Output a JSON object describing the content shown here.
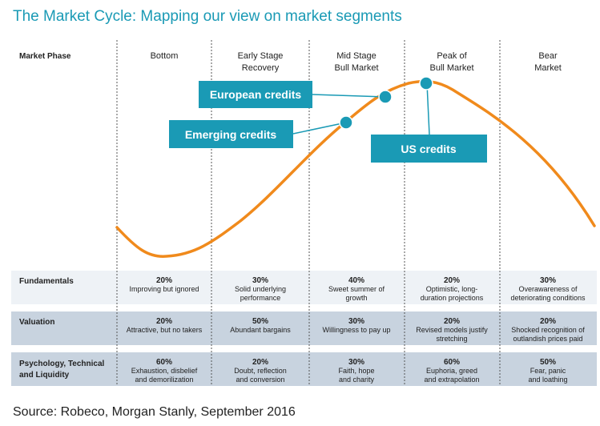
{
  "title": "The Market Cycle: Mapping our view on market segments",
  "source": "Source: Robeco, Morgan Stanly, September 2016",
  "colors": {
    "accent": "#1a9ab5",
    "curve": "#f08a1c",
    "row_light": "#eef2f6",
    "row_dark": "#c8d3df"
  },
  "phase_header": "Market Phase",
  "phases": [
    {
      "lines": [
        "Bottom"
      ]
    },
    {
      "lines": [
        "Early Stage",
        "Recovery"
      ]
    },
    {
      "lines": [
        "Mid Stage",
        "Bull Market"
      ]
    },
    {
      "lines": [
        "Peak of",
        "Bull Market"
      ]
    },
    {
      "lines": [
        "Bear",
        "Market"
      ]
    }
  ],
  "callouts": {
    "european": "European credits",
    "emerging": "Emerging credits",
    "us": "US credits"
  },
  "rows": [
    {
      "label_lines": [
        "Fundamentals"
      ],
      "cells": [
        {
          "pct": "20%",
          "desc": [
            "Improving but ignored"
          ]
        },
        {
          "pct": "30%",
          "desc": [
            "Solid underlying",
            "performance"
          ]
        },
        {
          "pct": "40%",
          "desc": [
            "Sweet summer of",
            "growth"
          ]
        },
        {
          "pct": "20%",
          "desc": [
            "Optimistic, long-",
            "duration projections"
          ]
        },
        {
          "pct": "30%",
          "desc": [
            "Overawareness of",
            "deteriorating conditions"
          ]
        }
      ]
    },
    {
      "label_lines": [
        "Valuation"
      ],
      "cells": [
        {
          "pct": "20%",
          "desc": [
            "Attractive, but no takers"
          ]
        },
        {
          "pct": "50%",
          "desc": [
            "Abundant bargains"
          ]
        },
        {
          "pct": "30%",
          "desc": [
            "Willingness to pay up"
          ]
        },
        {
          "pct": "20%",
          "desc": [
            "Revised models justify",
            "stretching"
          ]
        },
        {
          "pct": "20%",
          "desc": [
            "Shocked recognition of",
            "outlandish prices paid"
          ]
        }
      ]
    },
    {
      "label_lines": [
        "Psychology, Technical",
        "and Liquidity"
      ],
      "cells": [
        {
          "pct": "60%",
          "desc": [
            "Exhaustion, disbelief",
            "and demorilization"
          ]
        },
        {
          "pct": "20%",
          "desc": [
            "Doubt, reflection",
            "and conversion"
          ]
        },
        {
          "pct": "30%",
          "desc": [
            "Faith, hope",
            "and charity"
          ]
        },
        {
          "pct": "60%",
          "desc": [
            "Euphoria, greed",
            "and extrapolation"
          ]
        },
        {
          "pct": "50%",
          "desc": [
            "Fear, panic",
            "and loathing"
          ]
        }
      ]
    }
  ]
}
